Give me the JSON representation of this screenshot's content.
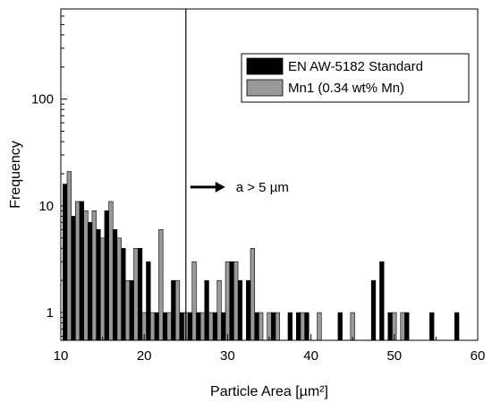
{
  "chart_data": {
    "type": "bar",
    "xlabel": "Particle Area [µm²]",
    "ylabel": "Frequency",
    "xlim": [
      10,
      60
    ],
    "ylim": [
      0.55,
      700
    ],
    "yscale": "log",
    "x_ticks": [
      10,
      20,
      30,
      40,
      50,
      60
    ],
    "x_tick_labels": [
      "10",
      "20",
      "30",
      "40",
      "50",
      "60"
    ],
    "y_ticks": [
      1,
      10,
      100
    ],
    "y_tick_labels": [
      "1",
      "10",
      "100"
    ],
    "legend_position": "top-right",
    "series": [
      {
        "name": "EN AW-5182 Standard",
        "color": "#000000",
        "points": [
          {
            "x": 10.5,
            "y": 16
          },
          {
            "x": 11.5,
            "y": 8
          },
          {
            "x": 12.5,
            "y": 11
          },
          {
            "x": 13.5,
            "y": 7
          },
          {
            "x": 14.5,
            "y": 6
          },
          {
            "x": 15.5,
            "y": 9
          },
          {
            "x": 16.5,
            "y": 6
          },
          {
            "x": 17.5,
            "y": 4
          },
          {
            "x": 18.5,
            "y": 2
          },
          {
            "x": 19.5,
            "y": 4
          },
          {
            "x": 20.5,
            "y": 3
          },
          {
            "x": 21.5,
            "y": 1
          },
          {
            "x": 22.5,
            "y": 1
          },
          {
            "x": 23.5,
            "y": 2
          },
          {
            "x": 24.5,
            "y": 1
          },
          {
            "x": 25.5,
            "y": 1
          },
          {
            "x": 26.5,
            "y": 1
          },
          {
            "x": 27.5,
            "y": 2
          },
          {
            "x": 28.5,
            "y": 1
          },
          {
            "x": 29.5,
            "y": 1
          },
          {
            "x": 30.5,
            "y": 3
          },
          {
            "x": 31.5,
            "y": 2
          },
          {
            "x": 32.5,
            "y": 2
          },
          {
            "x": 33.5,
            "y": 1
          },
          {
            "x": 35.5,
            "y": 1
          },
          {
            "x": 37.5,
            "y": 1
          },
          {
            "x": 38.5,
            "y": 1
          },
          {
            "x": 39.5,
            "y": 1
          },
          {
            "x": 43.5,
            "y": 1
          },
          {
            "x": 47.5,
            "y": 2
          },
          {
            "x": 48.5,
            "y": 3
          },
          {
            "x": 49.5,
            "y": 1
          },
          {
            "x": 51.5,
            "y": 1
          },
          {
            "x": 54.5,
            "y": 1
          },
          {
            "x": 57.5,
            "y": 1
          }
        ]
      },
      {
        "name": "Mn1 (0.34 wt% Mn)",
        "color": "#999999",
        "points": [
          {
            "x": 11.0,
            "y": 21
          },
          {
            "x": 12.0,
            "y": 11
          },
          {
            "x": 13.0,
            "y": 9
          },
          {
            "x": 14.0,
            "y": 9
          },
          {
            "x": 15.0,
            "y": 5
          },
          {
            "x": 16.0,
            "y": 11
          },
          {
            "x": 17.0,
            "y": 5
          },
          {
            "x": 18.0,
            "y": 2
          },
          {
            "x": 19.0,
            "y": 4
          },
          {
            "x": 20.0,
            "y": 1
          },
          {
            "x": 21.0,
            "y": 1
          },
          {
            "x": 22.0,
            "y": 6
          },
          {
            "x": 23.0,
            "y": 1
          },
          {
            "x": 24.0,
            "y": 2
          },
          {
            "x": 25.0,
            "y": 1
          },
          {
            "x": 26.0,
            "y": 3
          },
          {
            "x": 27.0,
            "y": 1
          },
          {
            "x": 28.0,
            "y": 1
          },
          {
            "x": 29.0,
            "y": 2
          },
          {
            "x": 30.0,
            "y": 3
          },
          {
            "x": 31.0,
            "y": 3
          },
          {
            "x": 33.0,
            "y": 4
          },
          {
            "x": 34.0,
            "y": 1
          },
          {
            "x": 35.0,
            "y": 1
          },
          {
            "x": 36.0,
            "y": 1
          },
          {
            "x": 39.0,
            "y": 1
          },
          {
            "x": 41.0,
            "y": 1
          },
          {
            "x": 45.0,
            "y": 1
          },
          {
            "x": 50.0,
            "y": 1
          },
          {
            "x": 51.0,
            "y": 1
          }
        ]
      }
    ],
    "annotations": [
      {
        "type": "vertical-line",
        "x": 25
      },
      {
        "type": "arrow-label",
        "text": "a > 5 µm",
        "from_x": 25,
        "to_x": 28,
        "y": 15
      }
    ]
  }
}
